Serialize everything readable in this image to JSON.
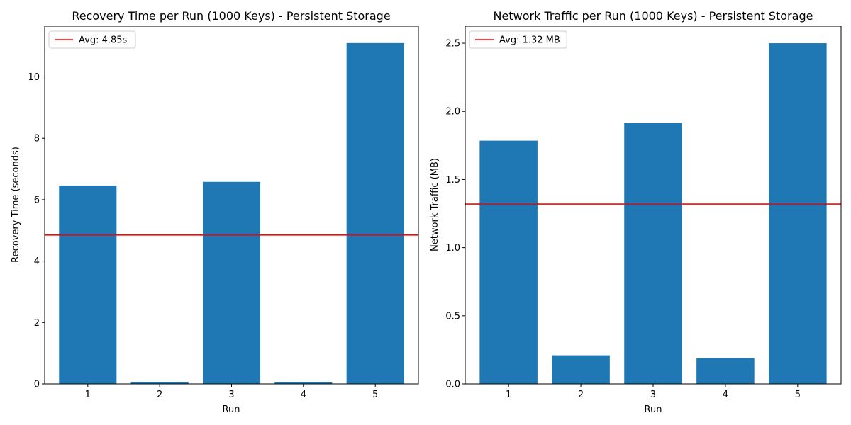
{
  "chart_data": [
    {
      "type": "bar",
      "title": "Recovery Time per Run (1000 Keys) - Persistent Storage",
      "xlabel": "Run",
      "ylabel": "Recovery Time (seconds)",
      "categories": [
        "1",
        "2",
        "3",
        "4",
        "5"
      ],
      "values": [
        6.46,
        0.06,
        6.58,
        0.06,
        11.1
      ],
      "ylim": [
        0,
        11.65
      ],
      "yticks": [
        0,
        2,
        4,
        6,
        8,
        10
      ],
      "ytick_labels": [
        "0",
        "2",
        "4",
        "6",
        "8",
        "10"
      ],
      "bar_color": "#1f77b4",
      "avg_line": {
        "value": 4.85,
        "label": "Avg: 4.85s",
        "color": "#ff0000"
      },
      "legend": "top-left",
      "grid": false
    },
    {
      "type": "bar",
      "title": "Network Traffic per Run (1000 Keys) - Persistent Storage",
      "xlabel": "Run",
      "ylabel": "Network Traffic (MB)",
      "categories": [
        "1",
        "2",
        "3",
        "4",
        "5"
      ],
      "values": [
        1.785,
        0.21,
        1.915,
        0.19,
        2.5
      ],
      "ylim": [
        0,
        2.625
      ],
      "yticks": [
        0,
        0.5,
        1.0,
        1.5,
        2.0,
        2.5
      ],
      "ytick_labels": [
        "0.0",
        "0.5",
        "1.0",
        "1.5",
        "2.0",
        "2.5"
      ],
      "bar_color": "#1f77b4",
      "avg_line": {
        "value": 1.32,
        "label": "Avg: 1.32 MB",
        "color": "#ff0000"
      },
      "legend": "top-left",
      "grid": false
    }
  ]
}
